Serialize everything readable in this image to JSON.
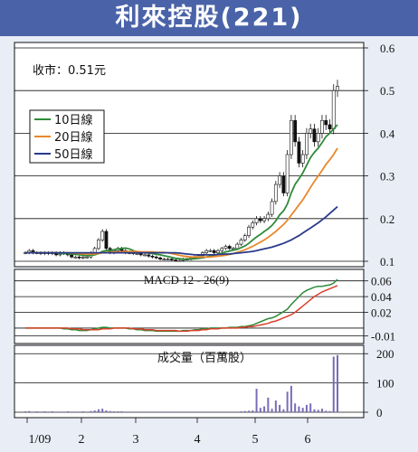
{
  "header": {
    "title": "利來控股(221)"
  },
  "price_panel": {
    "close_label": "收市：0.51元",
    "legend": [
      {
        "label": "10日線",
        "color": "#2e8b3a"
      },
      {
        "label": "20日線",
        "color": "#e8882a"
      },
      {
        "label": "50日線",
        "color": "#2a3a8a"
      }
    ]
  },
  "macd_panel": {
    "label": "MACD 12 - 26(9)"
  },
  "volume_panel": {
    "label": "成交量（百萬股）"
  },
  "chart_data": [
    {
      "type": "candlestick",
      "title": "利來控股(221)",
      "y_axis_side": "right",
      "ylim": [
        0.1,
        0.6
      ],
      "yticks": [
        "0.6",
        "0.5",
        "0.4",
        "0.3",
        "0.2",
        "0.1"
      ],
      "x_labels": [
        "1/09",
        "2",
        "3",
        "4",
        "5",
        "6"
      ],
      "annotation": "收市：0.51元",
      "daily_close": [
        0.12,
        0.125,
        0.12,
        0.12,
        0.118,
        0.12,
        0.118,
        0.12,
        0.115,
        0.12,
        0.118,
        0.115,
        0.11,
        0.11,
        0.108,
        0.11,
        0.11,
        0.12,
        0.13,
        0.15,
        0.17,
        0.13,
        0.12,
        0.125,
        0.13,
        0.125,
        0.12,
        0.12,
        0.118,
        0.118,
        0.115,
        0.115,
        0.112,
        0.11,
        0.108,
        0.105,
        0.105,
        0.105,
        0.103,
        0.102,
        0.102,
        0.105,
        0.105,
        0.108,
        0.11,
        0.113,
        0.12,
        0.125,
        0.125,
        0.12,
        0.125,
        0.13,
        0.135,
        0.13,
        0.13,
        0.14,
        0.15,
        0.16,
        0.18,
        0.19,
        0.2,
        0.195,
        0.2,
        0.21,
        0.24,
        0.28,
        0.3,
        0.26,
        0.35,
        0.43,
        0.38,
        0.33,
        0.35,
        0.4,
        0.41,
        0.38,
        0.4,
        0.43,
        0.42,
        0.41,
        0.5,
        0.51
      ],
      "series": [
        {
          "name": "10日線",
          "values": [
            0.12,
            0.12,
            0.12,
            0.12,
            0.12,
            0.12,
            0.12,
            0.12,
            0.12,
            0.118,
            0.118,
            0.118,
            0.117,
            0.116,
            0.115,
            0.114,
            0.113,
            0.114,
            0.115,
            0.118,
            0.123,
            0.125,
            0.125,
            0.127,
            0.129,
            0.13,
            0.131,
            0.129,
            0.125,
            0.122,
            0.12,
            0.12,
            0.119,
            0.118,
            0.116,
            0.115,
            0.113,
            0.111,
            0.109,
            0.107,
            0.106,
            0.105,
            0.105,
            0.105,
            0.106,
            0.107,
            0.108,
            0.11,
            0.112,
            0.114,
            0.116,
            0.119,
            0.122,
            0.124,
            0.126,
            0.128,
            0.132,
            0.136,
            0.142,
            0.15,
            0.157,
            0.163,
            0.17,
            0.176,
            0.184,
            0.195,
            0.209,
            0.218,
            0.234,
            0.26,
            0.28,
            0.293,
            0.307,
            0.325,
            0.343,
            0.355,
            0.365,
            0.378,
            0.392,
            0.4,
            0.41,
            0.42
          ]
        },
        {
          "name": "20日線",
          "values": [
            0.12,
            0.12,
            0.12,
            0.12,
            0.12,
            0.12,
            0.12,
            0.12,
            0.12,
            0.12,
            0.12,
            0.12,
            0.119,
            0.119,
            0.118,
            0.117,
            0.117,
            0.117,
            0.117,
            0.118,
            0.12,
            0.121,
            0.121,
            0.122,
            0.122,
            0.122,
            0.123,
            0.123,
            0.123,
            0.123,
            0.122,
            0.122,
            0.122,
            0.122,
            0.121,
            0.121,
            0.121,
            0.12,
            0.118,
            0.116,
            0.114,
            0.112,
            0.111,
            0.11,
            0.11,
            0.11,
            0.11,
            0.11,
            0.11,
            0.111,
            0.112,
            0.113,
            0.114,
            0.116,
            0.118,
            0.121,
            0.124,
            0.127,
            0.131,
            0.135,
            0.14,
            0.145,
            0.15,
            0.156,
            0.163,
            0.17,
            0.178,
            0.186,
            0.196,
            0.208,
            0.22,
            0.232,
            0.244,
            0.258,
            0.273,
            0.287,
            0.3,
            0.313,
            0.327,
            0.338,
            0.35,
            0.365
          ]
        },
        {
          "name": "50日線",
          "values": [
            0.12,
            0.12,
            0.12,
            0.12,
            0.12,
            0.12,
            0.12,
            0.12,
            0.12,
            0.12,
            0.12,
            0.12,
            0.12,
            0.12,
            0.12,
            0.12,
            0.12,
            0.12,
            0.12,
            0.12,
            0.12,
            0.12,
            0.12,
            0.12,
            0.12,
            0.12,
            0.12,
            0.12,
            0.12,
            0.12,
            0.12,
            0.12,
            0.12,
            0.12,
            0.12,
            0.12,
            0.12,
            0.12,
            0.12,
            0.12,
            0.119,
            0.118,
            0.117,
            0.116,
            0.115,
            0.115,
            0.115,
            0.115,
            0.115,
            0.115,
            0.116,
            0.116,
            0.117,
            0.117,
            0.118,
            0.119,
            0.12,
            0.121,
            0.122,
            0.123,
            0.125,
            0.127,
            0.129,
            0.131,
            0.133,
            0.136,
            0.139,
            0.142,
            0.146,
            0.15,
            0.155,
            0.16,
            0.166,
            0.172,
            0.178,
            0.184,
            0.19,
            0.197,
            0.204,
            0.212,
            0.22,
            0.228
          ]
        }
      ]
    },
    {
      "type": "line",
      "title": "MACD 12 - 26(9)",
      "y_axis_side": "right",
      "ylim": [
        -0.015,
        0.07
      ],
      "yticks": [
        "0.06",
        "0.04",
        "0.02",
        "-0.01"
      ],
      "series": [
        {
          "name": "MACD",
          "values": [
            0,
            0,
            0,
            0,
            0,
            0,
            0,
            0,
            0,
            0,
            -0.001,
            -0.001,
            -0.002,
            -0.002,
            -0.003,
            -0.003,
            -0.003,
            -0.002,
            -0.001,
            0,
            0.001,
            0.001,
            0,
            0,
            0,
            0,
            0,
            -0.001,
            -0.001,
            -0.002,
            -0.002,
            -0.003,
            -0.003,
            -0.003,
            -0.004,
            -0.004,
            -0.004,
            -0.004,
            -0.004,
            -0.004,
            -0.004,
            -0.003,
            -0.003,
            -0.003,
            -0.002,
            -0.002,
            -0.001,
            -0.001,
            0,
            0,
            0,
            0,
            0,
            0.001,
            0.001,
            0.001,
            0.002,
            0.002,
            0.003,
            0.004,
            0.006,
            0.008,
            0.01,
            0.012,
            0.013,
            0.015,
            0.018,
            0.021,
            0.024,
            0.03,
            0.035,
            0.04,
            0.045,
            0.048,
            0.05,
            0.052,
            0.053,
            0.053,
            0.054,
            0.055,
            0.057,
            0.062
          ]
        },
        {
          "name": "Signal",
          "values": [
            0,
            0,
            0,
            0,
            0,
            0,
            0,
            0,
            0,
            0,
            0,
            0,
            -0.001,
            -0.001,
            -0.001,
            -0.002,
            -0.002,
            -0.002,
            -0.002,
            -0.002,
            -0.001,
            -0.001,
            -0.001,
            0,
            0,
            0,
            0,
            0,
            -0.001,
            -0.001,
            -0.001,
            -0.002,
            -0.002,
            -0.002,
            -0.003,
            -0.003,
            -0.003,
            -0.003,
            -0.003,
            -0.003,
            -0.004,
            -0.004,
            -0.004,
            -0.003,
            -0.003,
            -0.003,
            -0.002,
            -0.002,
            -0.001,
            -0.001,
            -0.001,
            0,
            0,
            0,
            0,
            0,
            0.001,
            0.001,
            0.002,
            0.002,
            0.003,
            0.004,
            0.005,
            0.006,
            0.008,
            0.009,
            0.011,
            0.013,
            0.015,
            0.017,
            0.02,
            0.024,
            0.028,
            0.032,
            0.036,
            0.04,
            0.043,
            0.046,
            0.048,
            0.05,
            0.052,
            0.054
          ]
        }
      ]
    },
    {
      "type": "bar",
      "title": "成交量（百萬股）",
      "y_axis_side": "right",
      "ylim": [
        0,
        210
      ],
      "yticks": [
        "200",
        "100",
        "0"
      ],
      "values": [
        3,
        4,
        2,
        3,
        2,
        3,
        2,
        3,
        2,
        2,
        2,
        3,
        2,
        2,
        2,
        3,
        2,
        4,
        6,
        10,
        12,
        6,
        4,
        3,
        3,
        3,
        2,
        2,
        2,
        2,
        2,
        2,
        2,
        2,
        2,
        2,
        2,
        2,
        2,
        2,
        2,
        2,
        2,
        2,
        2,
        2,
        2,
        2,
        2,
        2,
        2,
        2,
        2,
        2,
        2,
        2,
        3,
        4,
        5,
        6,
        80,
        15,
        20,
        50,
        12,
        40,
        25,
        10,
        70,
        90,
        30,
        20,
        15,
        25,
        30,
        10,
        8,
        12,
        5,
        4,
        190,
        195
      ]
    }
  ]
}
